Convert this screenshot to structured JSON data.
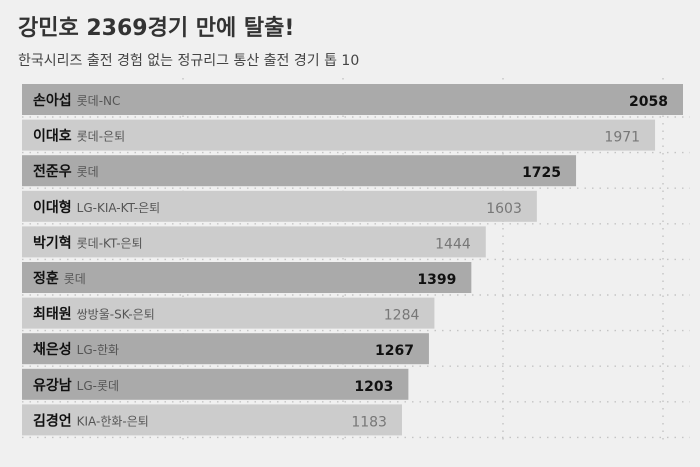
{
  "chart_data": {
    "type": "bar",
    "orientation": "horizontal",
    "title": "강민호 2369경기 만에 탈출!",
    "subtitle": "한국시리즈 출전 경험 없는 정규리그 통산 출전 경기 톱 10",
    "xlim": [
      0,
      2058
    ],
    "grid": true,
    "categories": [
      "손아섭",
      "이대호",
      "전준우",
      "이대형",
      "박기혁",
      "정훈",
      "최태원",
      "채은성",
      "유강남",
      "김경언"
    ],
    "teams": [
      "롯데-NC",
      "롯데-은퇴",
      "롯데",
      "LG-KIA-KT-은퇴",
      "롯데-KT-은퇴",
      "롯데",
      "쌍방울-SK-은퇴",
      "LG-한화",
      "LG-롯데",
      "KIA-한화-은퇴"
    ],
    "values": [
      2058,
      1971,
      1725,
      1603,
      1444,
      1399,
      1284,
      1267,
      1203,
      1183
    ],
    "active": [
      true,
      false,
      true,
      false,
      false,
      true,
      false,
      true,
      true,
      false
    ],
    "colors": {
      "active_bar": "#aaaaaa",
      "retired_bar": "#cccccc",
      "active_value": "#111111",
      "retired_value": "#777777",
      "name": "#111111",
      "team": "#555555",
      "background": "#f0f0f0",
      "grid": "#c4c4c4"
    }
  }
}
